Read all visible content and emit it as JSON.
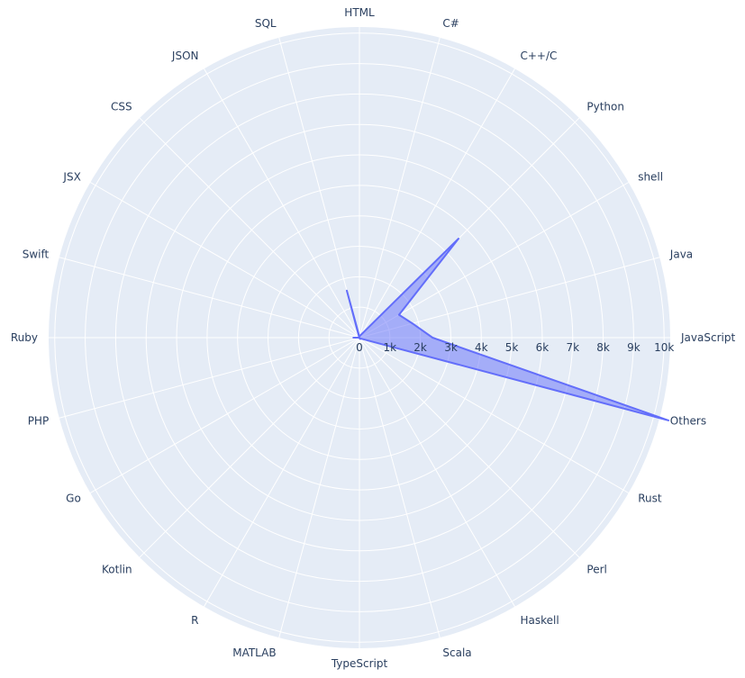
{
  "chart_data": {
    "type": "radar",
    "title": "",
    "categories": [
      "JavaScript",
      "Java",
      "shell",
      "Python",
      "C++/C",
      "C#",
      "HTML",
      "SQL",
      "JSON",
      "CSS",
      "JSX",
      "Swift",
      "Ruby",
      "PHP",
      "Go",
      "Kotlin",
      "R",
      "MATLAB",
      "TypeScript",
      "Scala",
      "Haskell",
      "Perl",
      "Rust",
      "Others"
    ],
    "series": [
      {
        "name": "",
        "values": [
          2400,
          1800,
          1500,
          4600,
          120,
          60,
          30,
          1600,
          20,
          15,
          10,
          5,
          200,
          5,
          5,
          5,
          5,
          5,
          5,
          30,
          50,
          50,
          70,
          10500
        ]
      }
    ],
    "radial_axis": {
      "range": [
        0,
        10200
      ],
      "tick_values": [
        0,
        1000,
        2000,
        3000,
        4000,
        5000,
        6000,
        7000,
        8000,
        9000,
        10000
      ],
      "tick_labels": [
        "0",
        "1k",
        "2k",
        "3k",
        "4k",
        "5k",
        "6k",
        "7k",
        "8k",
        "9k",
        "10k"
      ]
    },
    "angular_axis": {
      "direction": "counterclockwise",
      "rotation_degrees": 0
    },
    "grid": true,
    "legend": "none",
    "colors": {
      "polar_background": "#E5ECF6",
      "grid": "#FFFFFF",
      "series_line": "#636EFA",
      "series_fill": "rgba(99,110,250,0.5)",
      "text": "#2a3f5f"
    }
  }
}
